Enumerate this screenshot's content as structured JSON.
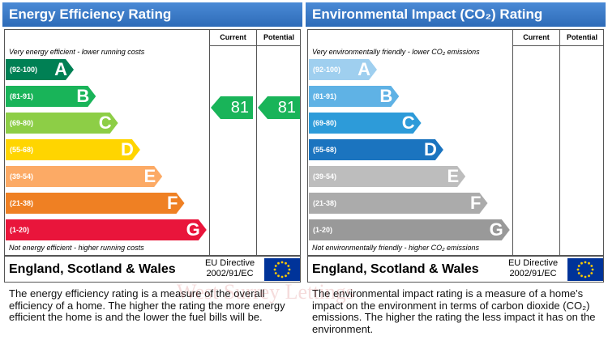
{
  "watermark": "West Surrey Lettings",
  "panels": [
    {
      "title": "Energy Efficiency Rating",
      "columns": [
        "Current",
        "Potential"
      ],
      "top_note": "Very energy efficient - lower running costs",
      "bottom_note": "Not energy efficient - higher running costs",
      "bands": [
        {
          "range": "(92-100)",
          "letter": "A",
          "color": "#008054"
        },
        {
          "range": "(81-91)",
          "letter": "B",
          "color": "#19b459"
        },
        {
          "range": "(69-80)",
          "letter": "C",
          "color": "#8dce46"
        },
        {
          "range": "(55-68)",
          "letter": "D",
          "color": "#ffd500"
        },
        {
          "range": "(39-54)",
          "letter": "E",
          "color": "#fcaa65"
        },
        {
          "range": "(21-38)",
          "letter": "F",
          "color": "#ef8023"
        },
        {
          "range": "(1-20)",
          "letter": "G",
          "color": "#e9153b"
        }
      ],
      "current": "81",
      "potential": "81",
      "region": "England, Scotland & Wales",
      "directive": [
        "EU Directive",
        "2002/91/EC"
      ],
      "description": "The energy efficiency rating is a measure of the overall efficiency of a home. The higher the rating the more energy efficient the home is and the lower the fuel bills will be."
    },
    {
      "title": "Environmental Impact (CO₂) Rating",
      "columns": [
        "Current",
        "Potential"
      ],
      "top_note": "Very environmentally friendly - lower CO₂ emissions",
      "bottom_note": "Not environmentally friendly - higher CO₂ emissions",
      "bands": [
        {
          "range": "(92-100)",
          "letter": "A",
          "color": "#9fcfef"
        },
        {
          "range": "(81-91)",
          "letter": "B",
          "color": "#5fb2e5"
        },
        {
          "range": "(69-80)",
          "letter": "C",
          "color": "#2d9bd9"
        },
        {
          "range": "(55-68)",
          "letter": "D",
          "color": "#1b74bf"
        },
        {
          "range": "(39-54)",
          "letter": "E",
          "color": "#bdbdbd"
        },
        {
          "range": "(21-38)",
          "letter": "F",
          "color": "#ababab"
        },
        {
          "range": "(1-20)",
          "letter": "G",
          "color": "#999999"
        }
      ],
      "region": "England, Scotland & Wales",
      "directive": [
        "EU Directive",
        "2002/91/EC"
      ],
      "description": "The environmental impact rating is a measure of a home's impact on the environment in terms of carbon dioxide (CO₂) emissions. The higher the rating the less impact it has on the environment."
    }
  ]
}
